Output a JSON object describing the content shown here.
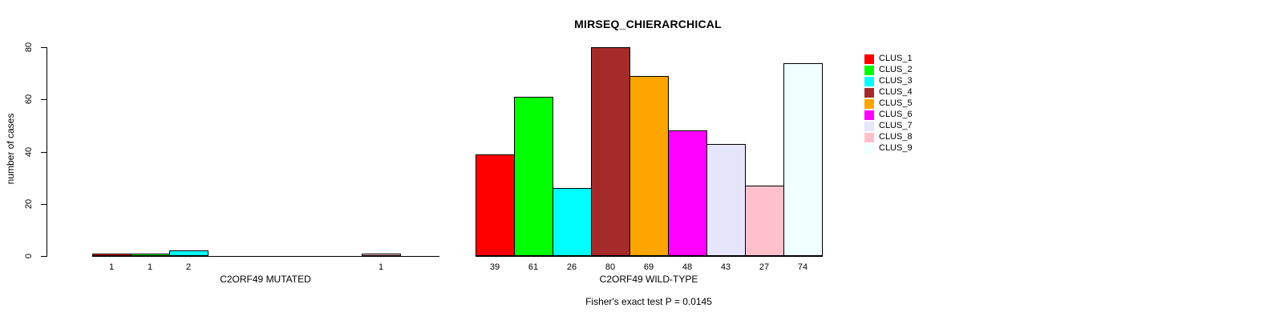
{
  "chart_data": {
    "type": "bar",
    "title": "MIRSEQ_CHIERARCHICAL",
    "ylabel": "number of cases",
    "ylim": [
      0,
      80
    ],
    "yticks": [
      0,
      20,
      40,
      60,
      80
    ],
    "grid": false,
    "legend_position": "right",
    "categories": [
      "CLUS_1",
      "CLUS_2",
      "CLUS_3",
      "CLUS_4",
      "CLUS_5",
      "CLUS_6",
      "CLUS_7",
      "CLUS_8",
      "CLUS_9"
    ],
    "colors": [
      "#FF0000",
      "#00FF00",
      "#00FFFF",
      "#A52A2A",
      "#FFA500",
      "#FF00FF",
      "#E6E6FA",
      "#FFC0CB",
      "#F0FFFF"
    ],
    "series": [
      {
        "name": "C2ORF49 MUTATED",
        "values": [
          1,
          1,
          2,
          0,
          0,
          0,
          0,
          1,
          0
        ]
      },
      {
        "name": "C2ORF49 WILD-TYPE",
        "values": [
          39,
          61,
          26,
          80,
          69,
          48,
          43,
          27,
          74
        ]
      }
    ],
    "bar_value_labels_shown_when_nonzero": true,
    "footer": "Fisher's exact test P = 0.0145"
  }
}
